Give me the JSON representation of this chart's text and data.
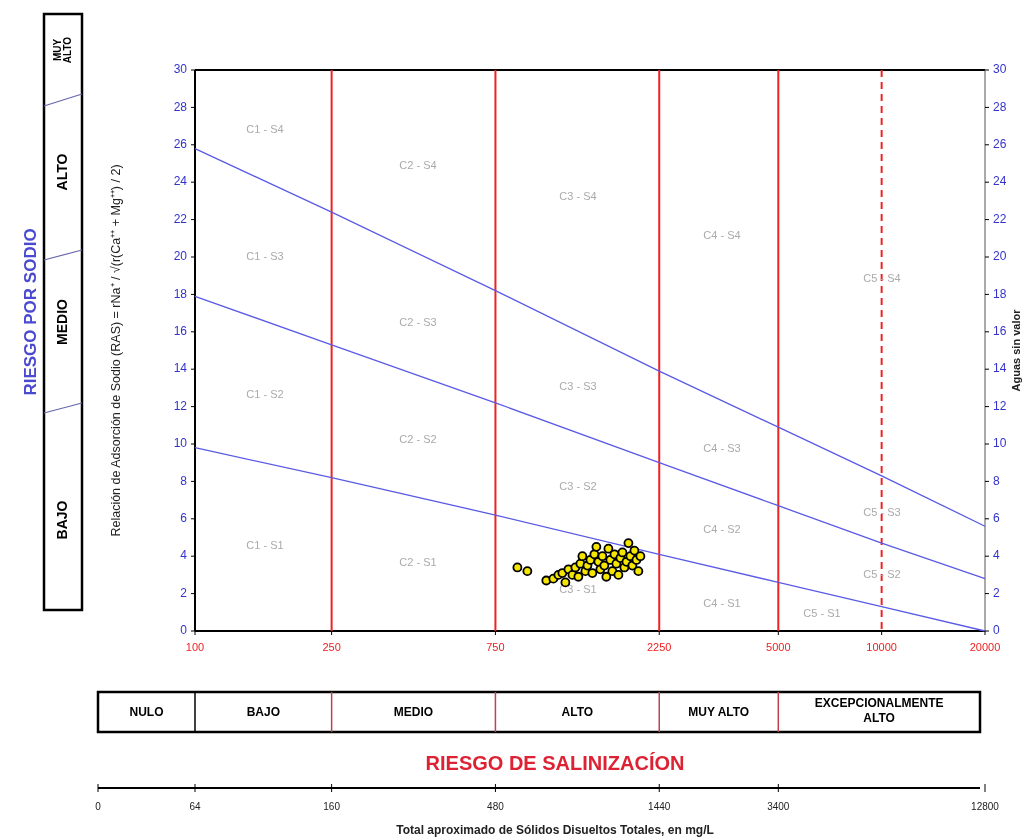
{
  "chart_data": {
    "type": "scatter",
    "ylabel": "Relación de Adsorción de Sodio (RAS) = rNa⁺ / √(r(Ca⁺⁺ + Mg⁺⁺) / 2)",
    "y2label": "Aguas sin valor",
    "log": "x",
    "xlim": [
      100,
      20000
    ],
    "xticks": [
      100,
      250,
      750,
      2250,
      5000,
      10000,
      20000
    ],
    "ylim": [
      0,
      30
    ],
    "yticks": [
      0,
      2,
      4,
      6,
      8,
      10,
      12,
      14,
      16,
      18,
      20,
      22,
      24,
      26,
      28,
      30
    ],
    "y2lim": [
      0,
      30
    ],
    "y2ticks": [
      0,
      2,
      4,
      6,
      8,
      10,
      12,
      14,
      16,
      18,
      20,
      22,
      24,
      26,
      28,
      30
    ],
    "grid": false,
    "series": [
      {
        "type": "line",
        "color": "#5a5ae6",
        "x": [
          100,
          250,
          750,
          2250,
          5000,
          10000,
          20000
        ],
        "values": [
          9.8,
          8.2,
          6.2,
          4.1,
          2.6,
          1.3,
          0
        ]
      },
      {
        "type": "line",
        "color": "#5a5ae6",
        "x": [
          100,
          250,
          750,
          2250,
          5000,
          10000,
          20000
        ],
        "values": [
          17.9,
          15.3,
          12.2,
          9.0,
          6.7,
          4.7,
          2.8
        ]
      },
      {
        "type": "line",
        "color": "#5a5ae6",
        "x": [
          100,
          250,
          750,
          2250,
          5000,
          10000,
          20000
        ],
        "values": [
          25.8,
          22.4,
          18.2,
          13.9,
          10.9,
          8.3,
          5.6
        ]
      },
      {
        "marker": "circle",
        "color": "#f5e600",
        "x": [
          869,
          929,
          1055,
          1106,
          1144,
          1175,
          1199,
          1224,
          1257,
          1282,
          1308,
          1326,
          1344,
          1371,
          1390,
          1418,
          1437,
          1456,
          1476,
          1496,
          1516,
          1537,
          1557,
          1578,
          1600,
          1621,
          1643,
          1666,
          1688,
          1711,
          1734,
          1758,
          1781,
          1806,
          1830,
          1854,
          1879,
          1905,
          1931,
          1956,
          1983
        ],
        "values": [
          3.4,
          3.2,
          2.7,
          2.8,
          3.0,
          3.1,
          2.6,
          3.3,
          3.0,
          3.4,
          2.9,
          3.6,
          4.0,
          3.2,
          3.5,
          3.8,
          3.1,
          4.1,
          4.5,
          3.7,
          3.3,
          4.0,
          3.5,
          2.9,
          4.4,
          3.8,
          3.2,
          4.1,
          3.6,
          3.0,
          3.9,
          4.2,
          3.4,
          3.7,
          4.7,
          4.0,
          3.5,
          4.3,
          3.8,
          3.2,
          4.0
        ]
      }
    ],
    "ref_lines": [
      {
        "axis": "x",
        "value": 250,
        "color": "#ee2222",
        "line_style": "solid"
      },
      {
        "axis": "x",
        "value": 750,
        "color": "#ee2222",
        "line_style": "solid"
      },
      {
        "axis": "x",
        "value": 2250,
        "color": "#ee2222",
        "line_style": "solid"
      },
      {
        "axis": "x",
        "value": 5000,
        "color": "#ee2222",
        "line_style": "solid"
      },
      {
        "axis": "x",
        "value": 10000,
        "color": "#ee2222",
        "line_style": "dashed"
      }
    ],
    "annotations": [
      "RIESGO POR SODIO",
      "BAJO",
      "MEDIO",
      "ALTO",
      "MUY ALTO",
      "NULO",
      "BAJO",
      "MEDIO",
      "ALTO",
      "MUY ALTO",
      "EXCEPCIONALMENTE ALTO",
      "RIESGO DE SALINIZACÍON",
      "0",
      "64",
      "160",
      "480",
      "1440",
      "3400",
      "12800",
      "Total aproximado de Sólidos Disueltos Totales, en mg/L",
      "C1 - S4",
      "C1 - S3",
      "C1 - S2",
      "C1 - S1",
      "C2 - S4",
      "C2 - S3",
      "C2 - S2",
      "C2 - S1",
      "C3 - S4",
      "C3 - S3",
      "C3 - S2",
      "C3 - S1",
      "C4 - S4",
      "C4 - S3",
      "C4 - S2",
      "C4 - S1",
      "C5 - S4",
      "C5 - S3",
      "C5 - S2",
      "C5 - S1"
    ]
  }
}
